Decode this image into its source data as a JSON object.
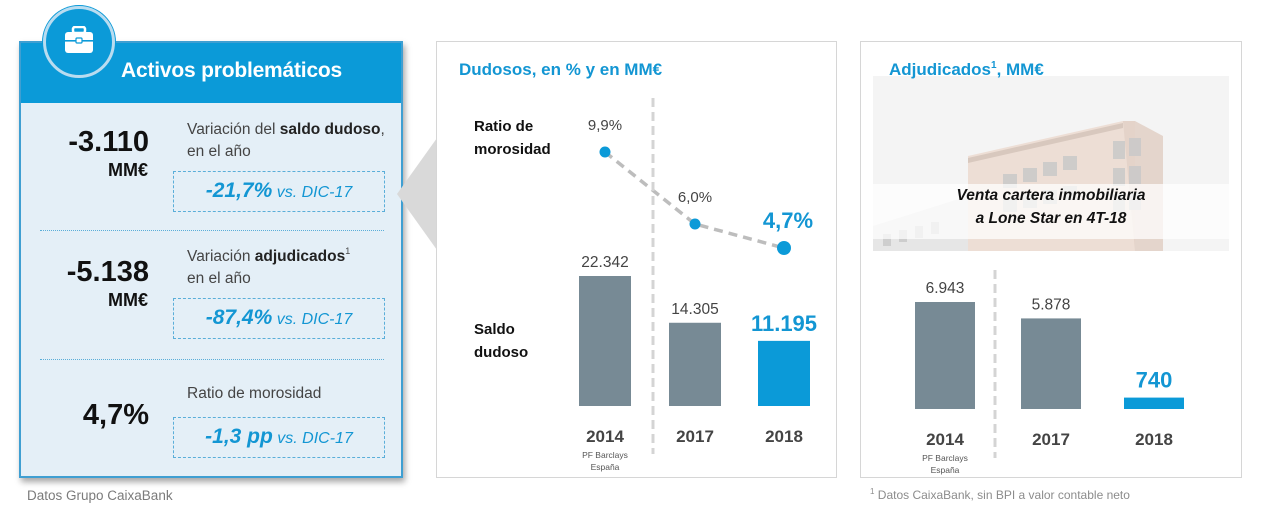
{
  "left_card": {
    "title": "Activos problemáticos",
    "icon": "briefcase-icon",
    "metrics": [
      {
        "value": "-3.110",
        "unit": "MM€",
        "desc_pre": "Variación del ",
        "desc_bold": "saldo dudoso",
        "desc_post": ", en el año",
        "delta_big": "-21,7%",
        "delta_small": " vs. DIC-17"
      },
      {
        "value": "-5.138",
        "unit": "MM€",
        "desc_pre": "Variación ",
        "desc_bold": "adjudicados",
        "desc_sup": "1",
        "desc_post": "en el año",
        "delta_big": "-87,4%",
        "delta_small": " vs. DIC-17"
      },
      {
        "value": "4,7%",
        "unit": "",
        "desc_pre": "Ratio de morosidad",
        "delta_big": "-1,3 pp",
        "delta_small": " vs. DIC-17"
      }
    ],
    "footnote": "Datos Grupo CaixaBank"
  },
  "middle_panel": {
    "title": "Dudosos, en % y en MM€",
    "ratio_label_line1": "Ratio de",
    "ratio_label_line2": "morosidad",
    "saldo_label_line1": "Saldo",
    "saldo_label_line2": "dudoso"
  },
  "right_panel": {
    "title": "Adjudicados",
    "title_sup": "1",
    "title_suffix": ", MM€",
    "photo_caption_line1": "Venta cartera inmobiliaria",
    "photo_caption_line2": "a Lone Star en 4T-18",
    "footnote_sup": "1",
    "footnote": " Datos CaixaBank, sin BPI a valor contable neto"
  },
  "colors": {
    "accent": "#0b9ad8",
    "accent_text": "#1396d3",
    "bar_gray": "#778a95",
    "divider_gray": "#d4d4d4"
  },
  "chart_data": [
    {
      "type": "line",
      "title": "Ratio de morosidad",
      "categories": [
        "2014",
        "2017",
        "2018"
      ],
      "values": [
        9.9,
        6.0,
        4.7
      ],
      "labels": [
        "9,9%",
        "6,0%",
        "4,7%"
      ],
      "unit": "%",
      "highlight_index": 2,
      "line_style": "dashed"
    },
    {
      "type": "bar",
      "title": "Saldo dudoso",
      "categories": [
        "2014",
        "2017",
        "2018"
      ],
      "category_notes": [
        "PF Barclays España",
        "",
        ""
      ],
      "values": [
        22342,
        14305,
        11195
      ],
      "labels": [
        "22.342",
        "14.305",
        "11.195"
      ],
      "unit": "MM€",
      "highlight_index": 2,
      "separator_after_index": 0
    },
    {
      "type": "bar",
      "title": "Adjudicados, MM€",
      "categories": [
        "2014",
        "2017",
        "2018"
      ],
      "category_notes": [
        "PF Barclays España",
        "",
        ""
      ],
      "values": [
        6943,
        5878,
        740
      ],
      "labels": [
        "6.943",
        "5.878",
        "740"
      ],
      "unit": "MM€",
      "highlight_index": 2,
      "separator_after_index": 0
    }
  ]
}
